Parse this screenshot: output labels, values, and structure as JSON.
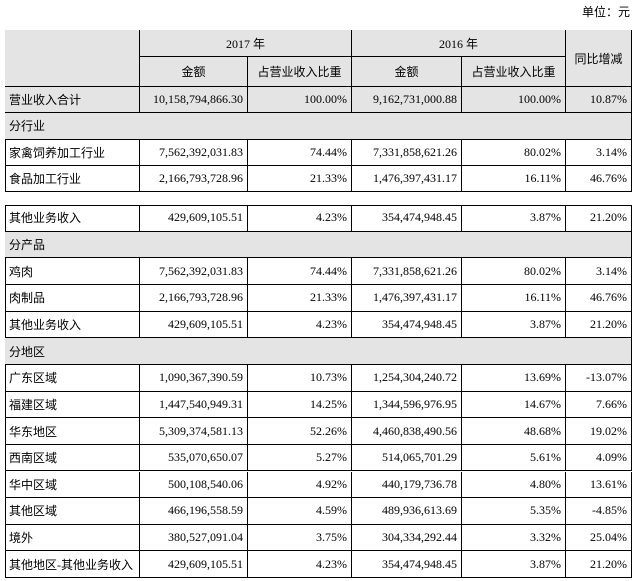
{
  "unit": "单位：元",
  "header": {
    "year_2017": "2017 年",
    "year_2016": "2016 年",
    "columns_2017": [
      "金额",
      "占营业收入比重"
    ],
    "columns_2016": [
      "金额",
      "占营业收入比重"
    ],
    "change": "同比增减"
  },
  "tables": [
    {
      "rows": [
        {
          "cells": [
            "营业收入合计",
            "10,158,794,866.30",
            "100.00%",
            "9,162,731,000.88",
            "100.00%",
            "10.87%"
          ]
        },
        {
          "section": "分行业"
        },
        {
          "cells": [
            "家禽饲养加工行业",
            "7,562,392,031.83",
            "74.44%",
            "7,331,858,621.26",
            "80.02%",
            "3.14%"
          ]
        },
        {
          "cells": [
            "食品加工行业",
            "2,166,793,728.96",
            "21.33%",
            "1,476,397,431.17",
            "16.11%",
            "46.76%"
          ]
        }
      ]
    },
    {
      "rows": [
        {
          "cells": [
            "其他业务收入",
            "429,609,105.51",
            "4.23%",
            "354,474,948.45",
            "3.87%",
            "21.20%"
          ]
        },
        {
          "section": "分产品"
        },
        {
          "cells": [
            "鸡肉",
            "7,562,392,031.83",
            "74.44%",
            "7,331,858,621.26",
            "80.02%",
            "3.14%"
          ]
        },
        {
          "cells": [
            "肉制品",
            "2,166,793,728.96",
            "21.33%",
            "1,476,397,431.17",
            "16.11%",
            "46.76%"
          ]
        },
        {
          "cells": [
            "其他业务收入",
            "429,609,105.51",
            "4.23%",
            "354,474,948.45",
            "3.87%",
            "21.20%"
          ]
        },
        {
          "section": "分地区"
        },
        {
          "cells": [
            "广东区域",
            "1,090,367,390.59",
            "10.73%",
            "1,254,304,240.72",
            "13.69%",
            "-13.07%"
          ]
        },
        {
          "cells": [
            "福建区域",
            "1,447,540,949.31",
            "14.25%",
            "1,344,596,976.95",
            "14.67%",
            "7.66%"
          ]
        },
        {
          "cells": [
            "华东地区",
            "5,309,374,581.13",
            "52.26%",
            "4,460,838,490.56",
            "48.68%",
            "19.02%"
          ]
        },
        {
          "cells": [
            "西南区域",
            "535,070,650.07",
            "5.27%",
            "514,065,701.29",
            "5.61%",
            "4.09%"
          ]
        },
        {
          "cells": [
            "华中区域",
            "500,108,540.06",
            "4.92%",
            "440,179,736.78",
            "4.80%",
            "13.61%"
          ]
        },
        {
          "cells": [
            "其他区域",
            "466,196,558.59",
            "4.59%",
            "489,936,613.69",
            "5.35%",
            "-4.85%"
          ]
        },
        {
          "cells": [
            "境外",
            "380,527,091.04",
            "3.75%",
            "304,334,292.44",
            "3.32%",
            "25.04%"
          ]
        },
        {
          "cells": [
            "其他地区-其他业务收入",
            "429,609,105.51",
            "4.23%",
            "354,474,948.45",
            "3.87%",
            "21.20%"
          ]
        }
      ]
    }
  ]
}
